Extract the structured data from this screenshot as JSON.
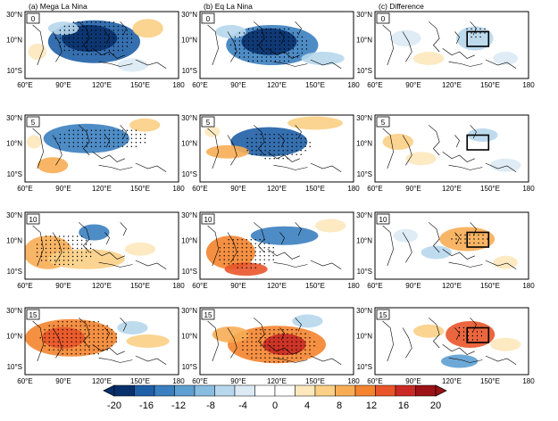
{
  "figure": {
    "column_titles": [
      "(a) Mega La Nina",
      "(b) Eq La Nina",
      "(c) Difference"
    ],
    "row_labels": [
      "0",
      "5",
      "10",
      "15"
    ],
    "lat_ticks": [
      "30°N",
      "10°N",
      "10°S"
    ],
    "lon_ticks": [
      "60°E",
      "90°E",
      "120°E",
      "150°E",
      "180"
    ],
    "colorbar": {
      "tick_labels": [
        "-20",
        "-16",
        "-12",
        "-8",
        "-4",
        "0",
        "4",
        "8",
        "12",
        "16",
        "20"
      ],
      "colors": [
        "#08306b",
        "#1f5fa6",
        "#3b7fc0",
        "#5e9fd1",
        "#88bde0",
        "#b7d7ec",
        "#dbeaf4",
        "#ffffff",
        "#ffffff",
        "#fde8bc",
        "#fbcf85",
        "#f8ad55",
        "#f4842f",
        "#e9552a",
        "#c92a25",
        "#9c1216"
      ]
    },
    "box_panel_column": 2
  }
}
